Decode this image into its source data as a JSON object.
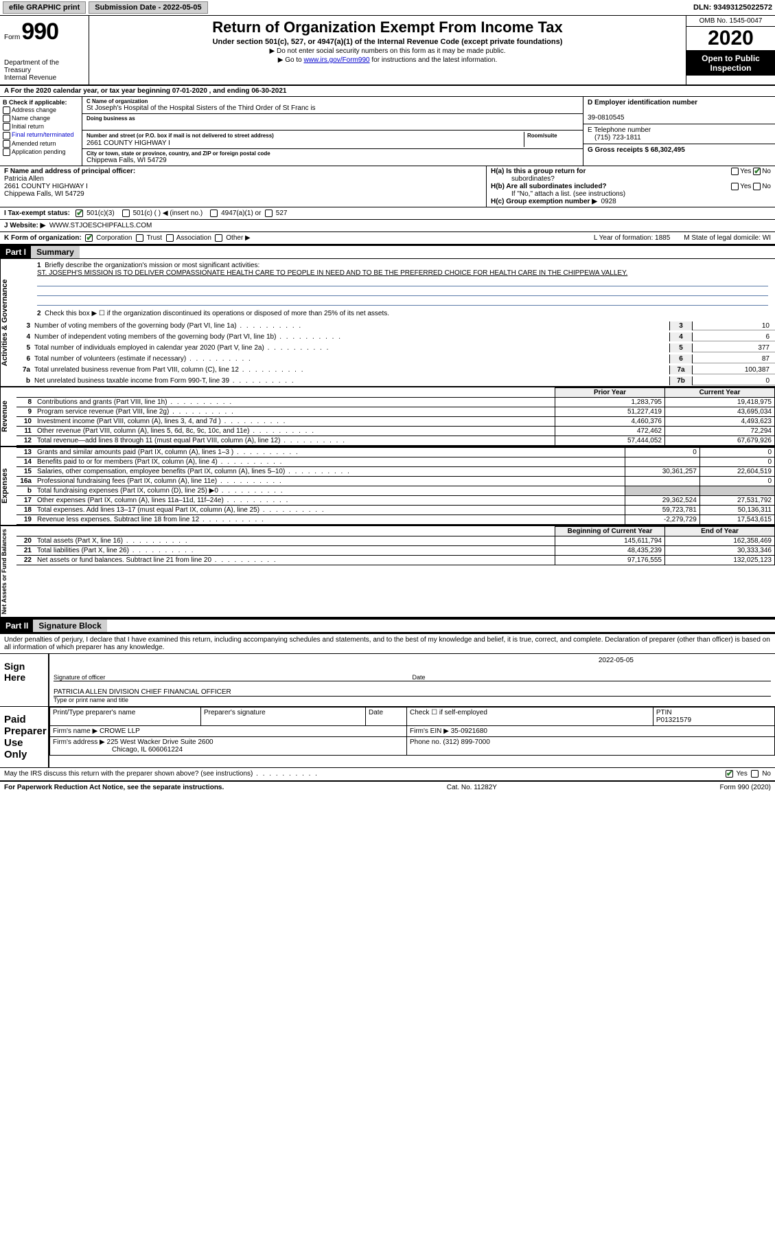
{
  "topbar": {
    "efile": "efile GRAPHIC print",
    "submission_label": "Submission Date - 2022-05-05",
    "dln": "DLN: 93493125022572"
  },
  "header": {
    "form_word": "Form",
    "form_num": "990",
    "dept": "Department of the Treasury",
    "irs": "Internal Revenue",
    "title": "Return of Organization Exempt From Income Tax",
    "subtitle": "Under section 501(c), 527, or 4947(a)(1) of the Internal Revenue Code (except private foundations)",
    "note1": "▶ Do not enter social security numbers on this form as it may be made public.",
    "note2_pre": "▶ Go to ",
    "note2_link": "www.irs.gov/Form990",
    "note2_post": " for instructions and the latest information.",
    "omb": "OMB No. 1545-0047",
    "year": "2020",
    "open": "Open to Public Inspection"
  },
  "line_a": "A For the 2020 calendar year, or tax year beginning 07-01-2020   , and ending 06-30-2021",
  "section_b": {
    "hdr": "B Check if applicable:",
    "opts": [
      "Address change",
      "Name change",
      "Initial return",
      "Final return/terminated",
      "Amended return",
      "Application pending"
    ]
  },
  "section_c": {
    "name_lab": "C Name of organization",
    "name": "St Joseph's Hospital of the Hospital Sisters of the Third Order of St Franc is",
    "dba_lab": "Doing business as",
    "addr_lab": "Number and street (or P.O. box if mail is not delivered to street address)",
    "room_lab": "Room/suite",
    "addr": "2661 COUNTY HIGHWAY I",
    "city_lab": "City or town, state or province, country, and ZIP or foreign postal code",
    "city": "Chippewa Falls, WI  54729"
  },
  "section_d": {
    "lab": "D Employer identification number",
    "val": "39-0810545"
  },
  "section_e": {
    "lab": "E Telephone number",
    "val": "(715) 723-1811"
  },
  "section_g": {
    "lab": "G Gross receipts $ 68,302,495"
  },
  "section_f": {
    "lab": "F  Name and address of principal officer:",
    "name": "Patricia Allen",
    "addr1": "2661 COUNTY HIGHWAY I",
    "addr2": "Chippewa Falls, WI  54729"
  },
  "section_h": {
    "a_lab": "H(a)  Is this a group return for",
    "a_sub": "subordinates?",
    "b_lab": "H(b)  Are all subordinates included?",
    "b_note": "If \"No,\" attach a list. (see instructions)",
    "c_lab": "H(c)  Group exemption number ▶",
    "c_val": "0928",
    "yes": "Yes",
    "no": "No"
  },
  "status": {
    "lab": "I     Tax-exempt status:",
    "opts": [
      "501(c)(3)",
      "501(c) (  ) ◀ (insert no.)",
      "4947(a)(1) or",
      "527"
    ]
  },
  "website": {
    "lab": "J    Website: ▶",
    "val": "WWW.STJOESCHIPFALLS.COM"
  },
  "korg": {
    "lab": "K Form of organization:",
    "opts": [
      "Corporation",
      "Trust",
      "Association",
      "Other ▶"
    ],
    "l": "L Year of formation: 1885",
    "m": "M State of legal domicile: WI"
  },
  "part1": {
    "hdr": "Part I",
    "title": "Summary"
  },
  "governance": {
    "side": "Activities & Governance",
    "l1": "Briefly describe the organization's mission or most significant activities:",
    "mission": "ST. JOSEPH'S MISSION IS TO DELIVER COMPASSIONATE HEALTH CARE TO PEOPLE IN NEED AND TO BE THE PREFERRED CHOICE FOR HEALTH CARE IN THE CHIPPEWA VALLEY.",
    "l2": "Check this box ▶ ☐  if the organization discontinued its operations or disposed of more than 25% of its net assets.",
    "rows": [
      {
        "n": "3",
        "t": "Number of voting members of the governing body (Part VI, line 1a)",
        "box": "3",
        "val": "10"
      },
      {
        "n": "4",
        "t": "Number of independent voting members of the governing body (Part VI, line 1b)",
        "box": "4",
        "val": "6"
      },
      {
        "n": "5",
        "t": "Total number of individuals employed in calendar year 2020 (Part V, line 2a)",
        "box": "5",
        "val": "377"
      },
      {
        "n": "6",
        "t": "Total number of volunteers (estimate if necessary)",
        "box": "6",
        "val": "87"
      },
      {
        "n": "7a",
        "t": "Total unrelated business revenue from Part VIII, column (C), line 12",
        "box": "7a",
        "val": "100,387"
      },
      {
        "n": "b",
        "t": "Net unrelated business taxable income from Form 990-T, line 39",
        "box": "7b",
        "val": "0"
      }
    ]
  },
  "fin_headers": {
    "prior": "Prior Year",
    "current": "Current Year",
    "boy": "Beginning of Current Year",
    "eoy": "End of Year"
  },
  "revenue": {
    "side": "Revenue",
    "rows": [
      {
        "n": "8",
        "t": "Contributions and grants (Part VIII, line 1h)",
        "p": "1,283,795",
        "c": "19,418,975"
      },
      {
        "n": "9",
        "t": "Program service revenue (Part VIII, line 2g)",
        "p": "51,227,419",
        "c": "43,695,034"
      },
      {
        "n": "10",
        "t": "Investment income (Part VIII, column (A), lines 3, 4, and 7d )",
        "p": "4,460,376",
        "c": "4,493,623"
      },
      {
        "n": "11",
        "t": "Other revenue (Part VIII, column (A), lines 5, 6d, 8c, 9c, 10c, and 11e)",
        "p": "472,462",
        "c": "72,294"
      },
      {
        "n": "12",
        "t": "Total revenue—add lines 8 through 11 (must equal Part VIII, column (A), line 12)",
        "p": "57,444,052",
        "c": "67,679,926"
      }
    ]
  },
  "expenses": {
    "side": "Expenses",
    "rows": [
      {
        "n": "13",
        "t": "Grants and similar amounts paid (Part IX, column (A), lines 1–3 )",
        "p": "0",
        "c": "0"
      },
      {
        "n": "14",
        "t": "Benefits paid to or for members (Part IX, column (A), line 4)",
        "p": "",
        "c": "0"
      },
      {
        "n": "15",
        "t": "Salaries, other compensation, employee benefits (Part IX, column (A), lines 5–10)",
        "p": "30,361,257",
        "c": "22,604,519"
      },
      {
        "n": "16a",
        "t": "Professional fundraising fees (Part IX, column (A), line 11e)",
        "p": "",
        "c": "0"
      },
      {
        "n": "b",
        "t": "Total fundraising expenses (Part IX, column (D), line 25) ▶0",
        "p": "shade",
        "c": "shade"
      },
      {
        "n": "17",
        "t": "Other expenses (Part IX, column (A), lines 11a–11d, 11f–24e)",
        "p": "29,362,524",
        "c": "27,531,792"
      },
      {
        "n": "18",
        "t": "Total expenses. Add lines 13–17 (must equal Part IX, column (A), line 25)",
        "p": "59,723,781",
        "c": "50,136,311"
      },
      {
        "n": "19",
        "t": "Revenue less expenses. Subtract line 18 from line 12",
        "p": "-2,279,729",
        "c": "17,543,615"
      }
    ]
  },
  "netassets": {
    "side": "Net Assets or Fund Balances",
    "rows": [
      {
        "n": "20",
        "t": "Total assets (Part X, line 16)",
        "p": "145,611,794",
        "c": "162,358,469"
      },
      {
        "n": "21",
        "t": "Total liabilities (Part X, line 26)",
        "p": "48,435,239",
        "c": "30,333,346"
      },
      {
        "n": "22",
        "t": "Net assets or fund balances. Subtract line 21 from line 20",
        "p": "97,176,555",
        "c": "132,025,123"
      }
    ]
  },
  "part2": {
    "hdr": "Part II",
    "title": "Signature Block"
  },
  "sig": {
    "intro": "Under penalties of perjury, I declare that I have examined this return, including accompanying schedules and statements, and to the best of my knowledge and belief, it is true, correct, and complete. Declaration of preparer (other than officer) is based on all information of which preparer has any knowledge.",
    "sign_here": "Sign Here",
    "sig_officer": "Signature of officer",
    "date_lab": "Date",
    "date": "2022-05-05",
    "name_title": "PATRICIA ALLEN  DIVISION CHIEF FINANCIAL OFFICER",
    "type_name": "Type or print name and title"
  },
  "prep": {
    "lab": "Paid Preparer Use Only",
    "h1": "Print/Type preparer's name",
    "h2": "Preparer's signature",
    "h3": "Date",
    "check_lab": "Check ☐ if self-employed",
    "ptin_lab": "PTIN",
    "ptin": "P01321579",
    "firm_name_lab": "Firm's name   ▶",
    "firm_name": "CROWE LLP",
    "firm_ein_lab": "Firm's EIN ▶",
    "firm_ein": "35-0921680",
    "firm_addr_lab": "Firm's address ▶",
    "firm_addr": "225 West Wacker Drive Suite 2600",
    "firm_city": "Chicago, IL  606061224",
    "phone_lab": "Phone no.",
    "phone": "(312) 899-7000"
  },
  "discuss": {
    "q": "May the IRS discuss this return with the preparer shown above? (see instructions)",
    "yes": "Yes",
    "no": "No"
  },
  "footer": {
    "pra": "For Paperwork Reduction Act Notice, see the separate instructions.",
    "cat": "Cat. No. 11282Y",
    "form": "Form 990 (2020)"
  },
  "colors": {
    "link": "#0000cc",
    "black": "#000000",
    "grey_btn": "#d0d0d0",
    "shade": "#cccccc",
    "line_blue": "#5a7aa8",
    "check_green": "#2a7a2a"
  }
}
